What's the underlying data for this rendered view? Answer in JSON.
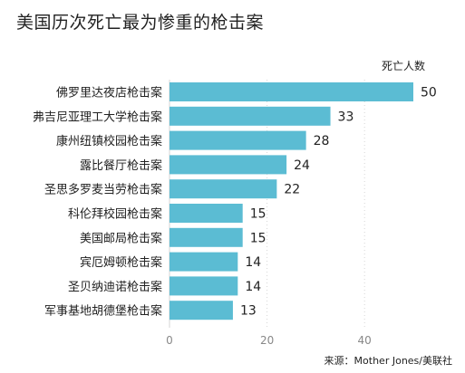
{
  "title": "美国历次死亡最为惨重的枪击案",
  "source": "来源：Mother Jones/美联社",
  "chart_data": {
    "type": "bar",
    "orientation": "horizontal",
    "title": "美国历次死亡最为惨重的枪击案",
    "unit_label": "死亡人数",
    "categories": [
      "佛罗里达夜店枪击案",
      "弗吉尼亚理工大学枪击案",
      "康州纽镇校园枪击案",
      "露比餐厅枪击案",
      "圣思多罗麦当劳枪击案",
      "科伦拜校园枪击案",
      "美国邮局枪击案",
      "宾厄姆顿枪击案",
      "圣贝纳迪诺枪击案",
      "军事基地胡德堡枪击案"
    ],
    "values": [
      50,
      33,
      28,
      24,
      22,
      15,
      15,
      14,
      14,
      13
    ],
    "xlim": [
      0,
      55
    ],
    "xticks": [
      0,
      20,
      40
    ],
    "grid": true,
    "bar_color": "#5bbcd3"
  }
}
